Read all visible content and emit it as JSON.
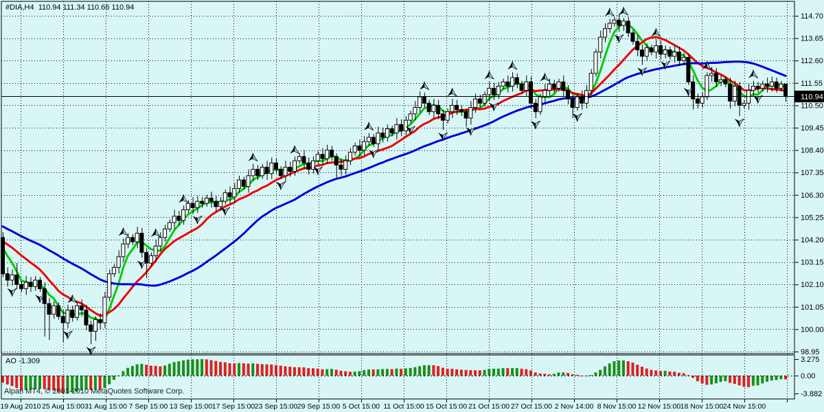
{
  "header": {
    "symbol": "#DIA,H4",
    "ohlc_text": "110.94 111.34 110.66 110.94"
  },
  "footer": {
    "copyright": "Alpari MT4, © 2001-2010 MetaQuotes Software Corp."
  },
  "chart_data": {
    "type": "candlestick",
    "title": "#DIA,H4",
    "timeframe": "H4",
    "ohlc": {
      "open": 110.94,
      "high": 111.34,
      "low": 110.66,
      "close": 110.94
    },
    "y_axis": {
      "ticks": [
        "114.70",
        "113.65",
        "112.60",
        "111.55",
        "110.50",
        "109.45",
        "108.40",
        "107.35",
        "106.30",
        "105.25",
        "104.20",
        "103.15",
        "102.10",
        "101.05",
        "100.00",
        "98.95"
      ],
      "current_price": 110.94,
      "current_price_label": "110.94"
    },
    "x_axis": {
      "labels": [
        "19 Aug 2010",
        "25 Aug 15:00",
        "31 Aug 15:00",
        "7 Sep 15:00",
        "13 Sep 15:00",
        "17 Sep 15:00",
        "23 Sep 15:00",
        "29 Sep 15:00",
        "5 Oct 15:00",
        "11 Oct 15:00",
        "15 Oct 15:00",
        "21 Oct 15:00",
        "27 Oct 15:00",
        "2 Nov 14:00",
        "8 Nov 15:00",
        "12 Nov 15:00",
        "18 Nov 15:00",
        "24 Nov 15:00"
      ]
    },
    "candles": {
      "first_open": 104.3,
      "default_wick": 0.15,
      "closes": [
        102.6,
        102.3,
        102.55,
        102.1,
        101.9,
        102.2,
        102.0,
        102.3,
        101.9,
        101.2,
        100.7,
        101.1,
        100.6,
        100.3,
        100.9,
        100.55,
        101.1,
        100.9,
        100.2,
        99.9,
        100.45,
        100.3,
        101.5,
        102.6,
        102.9,
        103.4,
        104.0,
        104.3,
        104.1,
        104.5,
        103.6,
        103.1,
        103.45,
        103.9,
        104.3,
        104.7,
        105.0,
        105.3,
        105.1,
        105.6,
        105.9,
        105.7,
        106.0,
        105.9,
        106.15,
        106.0,
        105.75,
        106.0,
        106.4,
        106.2,
        106.6,
        107.0,
        106.7,
        107.2,
        107.5,
        107.2,
        107.6,
        107.3,
        107.8,
        107.5,
        107.2,
        107.6,
        107.4,
        107.9,
        108.1,
        107.8,
        107.5,
        107.9,
        108.2,
        108.0,
        108.4,
        108.1,
        107.7,
        107.5,
        107.9,
        108.3,
        108.6,
        108.4,
        108.8,
        109.0,
        108.7,
        109.2,
        109.0,
        109.4,
        109.2,
        109.6,
        109.3,
        109.8,
        110.1,
        110.4,
        110.9,
        110.6,
        110.2,
        110.5,
        110.1,
        109.8,
        110.2,
        110.5,
        110.3,
        110.2,
        109.9,
        110.4,
        110.8,
        110.6,
        111.0,
        111.3,
        111.0,
        111.4,
        111.6,
        111.4,
        111.8,
        111.5,
        111.2,
        111.6,
        110.6,
        110.2,
        110.9,
        111.2,
        111.5,
        111.3,
        111.6,
        111.2,
        110.8,
        110.4,
        110.9,
        110.6,
        111.2,
        112.0,
        113.0,
        113.7,
        114.1,
        114.35,
        114.5,
        114.25,
        114.45,
        113.9,
        113.5,
        113.1,
        112.8,
        113.2,
        113.0,
        113.3,
        112.9,
        113.1,
        112.8,
        113.0,
        112.6,
        112.75,
        111.6,
        110.8,
        110.6,
        110.9,
        111.9,
        112.0,
        111.6,
        111.7,
        111.5,
        110.7,
        111.4,
        110.5,
        110.6,
        111.2,
        111.4,
        111.3,
        111.5,
        111.4,
        111.6,
        111.3,
        111.5,
        110.94
      ],
      "pre_closes": [
        106.5,
        106.3,
        106.2,
        106.0,
        105.9,
        105.8,
        105.6,
        105.5,
        105.4,
        105.3,
        105.2,
        105.1,
        105.0,
        104.95,
        104.9,
        104.85,
        104.8,
        104.75,
        104.7,
        104.65,
        104.6,
        104.55,
        104.5,
        104.45,
        104.4,
        104.35,
        104.3,
        104.3,
        104.25,
        104.2,
        104.2,
        104.15,
        104.1,
        104.05
      ],
      "high_overrides": {
        "0": 104.55,
        "3": 103.1,
        "131": 114.55,
        "132": 114.65,
        "134": 114.6,
        "169": 111.34
      },
      "low_overrides": {
        "9": 99.65,
        "10": 99.5,
        "13": 99.4,
        "19": 99.3,
        "20": 99.45,
        "31": 102.4,
        "72": 107.1,
        "95": 109.35,
        "100": 109.5,
        "115": 109.9,
        "123": 109.9,
        "138": 112.4,
        "149": 110.3,
        "157": 110.35,
        "159": 110.0,
        "169": 110.66
      }
    },
    "moving_averages": [
      {
        "name": "fast",
        "period": 5,
        "color": "#00cc00"
      },
      {
        "name": "medium",
        "period": 13,
        "color": "#ee0000"
      },
      {
        "name": "slow",
        "period": 34,
        "color": "#0000dd"
      }
    ],
    "fractals": {
      "up": [
        15,
        26,
        33,
        39,
        54,
        63,
        79,
        91,
        97,
        105,
        110,
        117,
        131,
        134,
        141,
        152,
        162
      ],
      "down": [
        2,
        8,
        14,
        19,
        30,
        42,
        48,
        60,
        68,
        80,
        88,
        95,
        101,
        106,
        115,
        124,
        133,
        138,
        143,
        148,
        159,
        163
      ]
    },
    "ao": {
      "label": "AO -1.309",
      "value": -1.309,
      "ticks": [
        "3.275",
        "0.00",
        "-3.882"
      ],
      "up_color": "#189018",
      "down_color": "#dd2020"
    },
    "colors": {
      "background": "#d9f6f6",
      "grid": "#000000",
      "bull": "#ffffff",
      "bear": "#000000",
      "frame": "#000000",
      "price_line": "#000000",
      "tag_bg": "#000000",
      "tag_fg": "#ffffff"
    }
  }
}
